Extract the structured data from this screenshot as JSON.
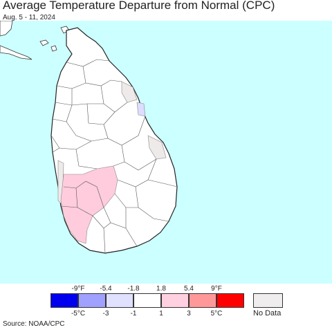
{
  "title": "Average Temperature Departure from Normal (CPC)",
  "subtitle": "Aug. 5 - 11, 2024",
  "source": "Source: NOAA/CPC",
  "colors": {
    "ocean": "#ccffff",
    "land": "#ffffff",
    "border": "#333333",
    "warm_light": "#ffccdd",
    "cool_light": "#ddddff",
    "no_data": "#eeeaea"
  },
  "legend": {
    "fahrenheit_ticks": [
      "-9°F",
      "-5.4",
      "-1.8",
      "1.8",
      "5.4",
      "9°F"
    ],
    "celsius_ticks": [
      "-5°C",
      "-3",
      "-1",
      "1",
      "3",
      "5°C"
    ],
    "bins": [
      {
        "color": "#0000ee"
      },
      {
        "color": "#a0a0ff"
      },
      {
        "color": "#e0e0ff"
      },
      {
        "color": "#ffffff"
      },
      {
        "color": "#ffd0e0"
      },
      {
        "color": "#ff9999"
      },
      {
        "color": "#ff0000"
      }
    ],
    "no_data_label": "No Data",
    "no_data_color": "#efeded"
  }
}
